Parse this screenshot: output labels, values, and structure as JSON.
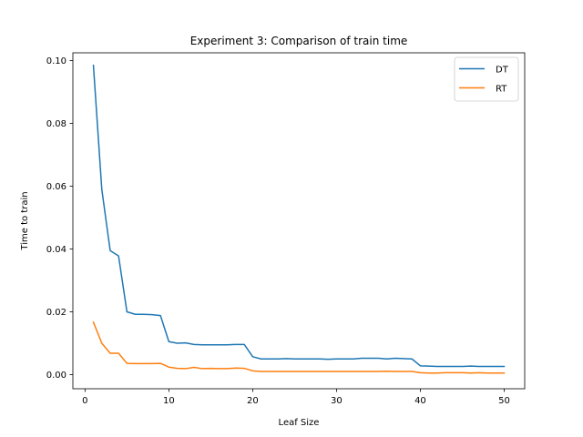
{
  "chart_data": {
    "type": "line",
    "title": "Experiment 3: Comparison of train time",
    "xlabel": "Leaf Size",
    "ylabel": "Time to train",
    "xlim": [
      -1.45,
      52.45
    ],
    "ylim": [
      -0.0045,
      0.1025
    ],
    "xticks": [
      0,
      10,
      20,
      30,
      40,
      50
    ],
    "xtick_labels": [
      "0",
      "10",
      "20",
      "30",
      "40",
      "50"
    ],
    "yticks": [
      0.0,
      0.02,
      0.04,
      0.06,
      0.08,
      0.1
    ],
    "ytick_labels": [
      "0.00",
      "0.02",
      "0.04",
      "0.06",
      "0.08",
      "0.10"
    ],
    "grid": false,
    "legend_position": "upper right",
    "x": [
      1,
      2,
      3,
      4,
      5,
      6,
      7,
      8,
      9,
      10,
      11,
      12,
      13,
      14,
      15,
      16,
      17,
      18,
      19,
      20,
      21,
      22,
      23,
      24,
      25,
      26,
      27,
      28,
      29,
      30,
      31,
      32,
      33,
      34,
      35,
      36,
      37,
      38,
      39,
      40,
      41,
      42,
      43,
      44,
      45,
      46,
      47,
      48,
      49,
      50
    ],
    "series": [
      {
        "name": "DT",
        "color": "#1f77b4",
        "values": [
          0.0985,
          0.059,
          0.0395,
          0.0378,
          0.02,
          0.0192,
          0.0192,
          0.0191,
          0.0188,
          0.0105,
          0.01,
          0.0101,
          0.0096,
          0.0095,
          0.0095,
          0.0095,
          0.0095,
          0.0096,
          0.0096,
          0.0057,
          0.005,
          0.005,
          0.005,
          0.0051,
          0.005,
          0.005,
          0.005,
          0.005,
          0.0049,
          0.005,
          0.005,
          0.005,
          0.0052,
          0.0052,
          0.0052,
          0.005,
          0.0052,
          0.0051,
          0.005,
          0.0028,
          0.0027,
          0.0026,
          0.0026,
          0.0026,
          0.0026,
          0.0027,
          0.0026,
          0.0026,
          0.0026,
          0.0026
        ]
      },
      {
        "name": "RT",
        "color": "#ff7f0e",
        "values": [
          0.0167,
          0.01,
          0.0068,
          0.0068,
          0.0036,
          0.0035,
          0.0035,
          0.0035,
          0.0036,
          0.0024,
          0.002,
          0.0019,
          0.0023,
          0.0019,
          0.002,
          0.0019,
          0.0019,
          0.0021,
          0.002,
          0.0012,
          0.001,
          0.001,
          0.001,
          0.001,
          0.001,
          0.001,
          0.001,
          0.001,
          0.001,
          0.001,
          0.001,
          0.001,
          0.001,
          0.001,
          0.001,
          0.0011,
          0.001,
          0.001,
          0.001,
          0.0006,
          0.0005,
          0.0005,
          0.0006,
          0.0006,
          0.0006,
          0.0005,
          0.0006,
          0.0005,
          0.0005,
          0.0005
        ]
      }
    ]
  }
}
